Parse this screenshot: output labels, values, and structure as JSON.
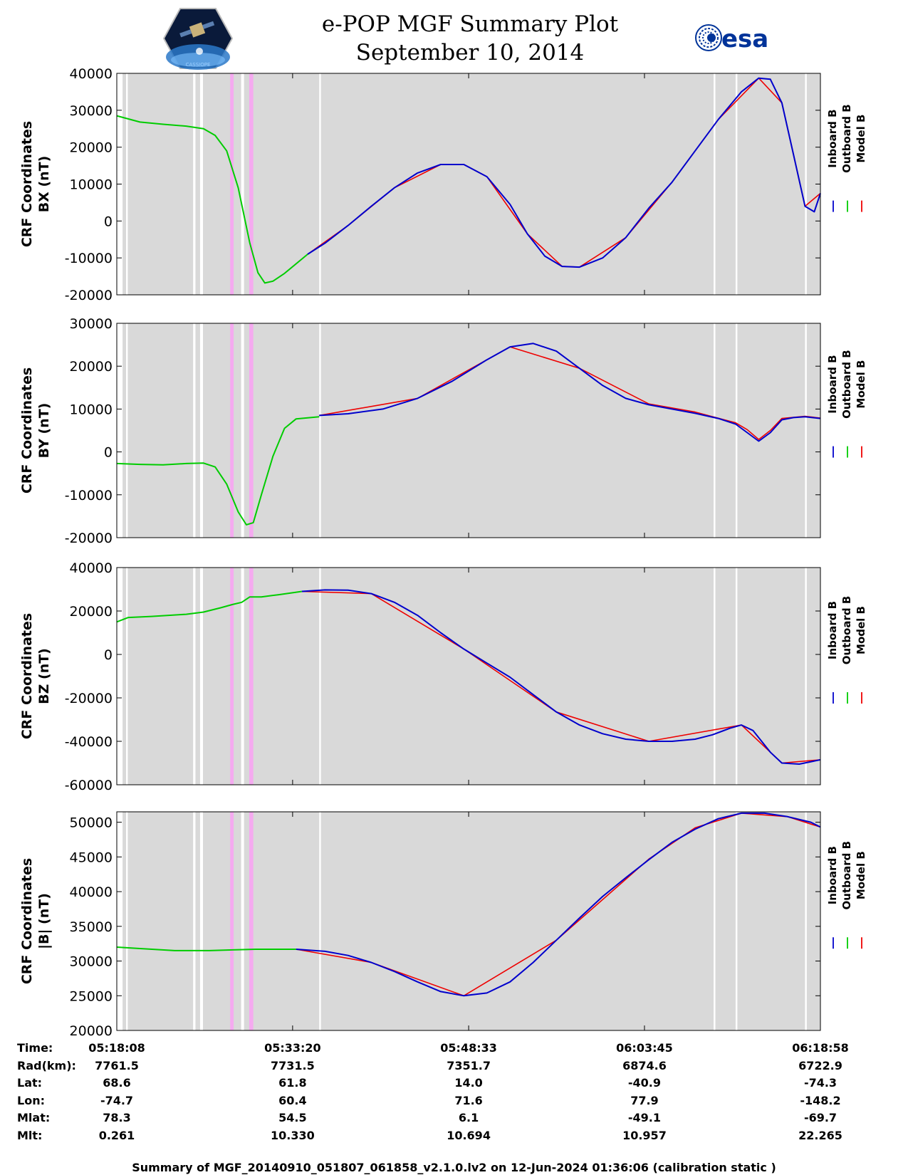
{
  "header": {
    "title_line1": "e-POP MGF Summary Plot",
    "title_line2": "September 10, 2014",
    "logo_right_text": "esa",
    "logo_left_caption": "CASSIOPE"
  },
  "colors": {
    "plot_bg": "#d9d9d9",
    "gap": "#ffffff",
    "pink_band": "#f5aaf0",
    "inboard": "#0000cc",
    "outboard": "#00cc00",
    "model": "#ee0000",
    "esa_blue": "#003399"
  },
  "legend": {
    "labels": [
      "Inboard B",
      "Outboard B",
      "Model B"
    ]
  },
  "time_axis": {
    "start_min": 0,
    "end_min": 60.83,
    "data_gaps_min": [
      [
        0.0,
        0.5
      ],
      [
        0.8,
        0.95
      ],
      [
        6.6,
        6.8
      ],
      [
        7.2,
        7.45
      ],
      [
        10.75,
        11.0
      ],
      [
        17.5,
        17.65
      ],
      [
        51.6,
        51.75
      ],
      [
        53.5,
        53.65
      ],
      [
        59.5,
        59.65
      ]
    ],
    "pink_bands_min": [
      [
        9.8,
        10.1
      ],
      [
        11.45,
        11.8
      ]
    ],
    "ticks_min": [
      0,
      15.2,
      30.42,
      45.62,
      60.83
    ]
  },
  "chart_data": [
    {
      "type": "line",
      "ylabel": "CRF Coordinates",
      "ylabel_sub": "BX (nT)",
      "ylim": [
        -20000,
        40000
      ],
      "yticks": [
        40000,
        30000,
        20000,
        10000,
        0,
        -10000,
        -20000
      ],
      "ytick_labels": [
        "40000",
        "30000",
        "20000",
        "10000",
        "0",
        "-10000",
        "-20000"
      ],
      "series": [
        {
          "name": "Outboard B",
          "x": [
            0,
            2,
            4,
            6,
            7.5,
            8.5,
            9.5,
            10.5,
            11.5,
            12.2,
            12.8,
            13.5,
            14.5,
            16.5
          ],
          "y": [
            28500,
            26800,
            26200,
            25700,
            25000,
            23200,
            19000,
            9000,
            -6000,
            -14000,
            -16800,
            -16300,
            -14200,
            -9000
          ]
        },
        {
          "name": "Inboard B",
          "x": [
            16.5,
            18,
            20,
            22,
            24,
            26,
            28,
            30,
            32,
            34,
            35.5,
            37,
            38.5,
            40,
            42,
            44,
            46,
            48,
            50,
            52,
            54,
            55.5,
            56.5,
            57.5,
            58.5,
            59.5,
            60.3,
            60.83
          ],
          "y": [
            -9000,
            -6000,
            -1200,
            4000,
            9000,
            13000,
            15300,
            15300,
            12000,
            4500,
            -3500,
            -9500,
            -12300,
            -12500,
            -10000,
            -4500,
            3500,
            10500,
            19000,
            27500,
            35000,
            38700,
            38400,
            32000,
            18000,
            4000,
            2500,
            7500
          ]
        },
        {
          "name": "Model B",
          "x": [
            16.5,
            20,
            24,
            28,
            30,
            32,
            35.5,
            38.5,
            40,
            44,
            48,
            52,
            55.5,
            57.5,
            59.5,
            60.83
          ],
          "y": [
            -9000,
            -1200,
            9000,
            15300,
            15300,
            12000,
            -3500,
            -12300,
            -12500,
            -4500,
            10500,
            27500,
            38700,
            32000,
            4000,
            7500
          ]
        }
      ]
    },
    {
      "type": "line",
      "ylabel": "CRF Coordinates",
      "ylabel_sub": "BY (nT)",
      "ylim": [
        -20000,
        30000
      ],
      "yticks": [
        30000,
        20000,
        10000,
        0,
        -10000,
        -20000
      ],
      "ytick_labels": [
        "30000",
        "20000",
        "10000",
        "0",
        "-10000",
        "-20000"
      ],
      "series": [
        {
          "name": "Outboard B",
          "x": [
            0,
            2,
            4,
            6,
            7.5,
            8.5,
            9.5,
            10.5,
            11.2,
            11.8,
            12.5,
            13.5,
            14.5,
            15.5,
            17.5
          ],
          "y": [
            -2700,
            -2900,
            -3000,
            -2700,
            -2600,
            -3500,
            -7500,
            -14000,
            -17000,
            -16500,
            -10000,
            -1000,
            5500,
            7700,
            8200
          ]
        },
        {
          "name": "Inboard B",
          "x": [
            17.5,
            20,
            23,
            26,
            29,
            32,
            34,
            36,
            38,
            40,
            42,
            44,
            46,
            48,
            50,
            52,
            53.5,
            54.5,
            55.5,
            56.5,
            57.5,
            58.5,
            59.5,
            60.83
          ],
          "y": [
            8500,
            8900,
            10000,
            12500,
            16500,
            21500,
            24500,
            25300,
            23500,
            19500,
            15500,
            12500,
            11000,
            10000,
            9000,
            7800,
            6500,
            4500,
            2500,
            4500,
            7500,
            8000,
            8200,
            7800
          ]
        },
        {
          "name": "Model B",
          "x": [
            17.5,
            26,
            34,
            40,
            46,
            50,
            53.5,
            54.5,
            55.5,
            56.5,
            57.5,
            59.5,
            60.83
          ],
          "y": [
            8500,
            12500,
            24500,
            19500,
            11200,
            9300,
            6800,
            5200,
            2900,
            5000,
            7800,
            8300,
            7900
          ]
        }
      ]
    },
    {
      "type": "line",
      "ylabel": "CRF Coordinates",
      "ylabel_sub": "BZ (nT)",
      "ylim": [
        -60000,
        40000
      ],
      "yticks": [
        40000,
        20000,
        0,
        -20000,
        -40000,
        -60000
      ],
      "ytick_labels": [
        "40000",
        "20000",
        "0",
        "-20000",
        "-40000",
        "-60000"
      ],
      "series": [
        {
          "name": "Outboard B",
          "x": [
            0,
            1,
            3,
            6,
            7.5,
            9,
            10,
            10.8,
            11.5,
            12.5,
            14,
            16
          ],
          "y": [
            15000,
            17000,
            17500,
            18500,
            19500,
            21500,
            23000,
            24000,
            26500,
            26500,
            27500,
            29000
          ]
        },
        {
          "name": "Inboard B",
          "x": [
            16,
            18,
            20,
            22,
            24,
            26,
            28,
            30,
            32,
            34,
            36,
            38,
            40,
            42,
            44,
            46,
            48,
            50,
            51.5,
            53,
            54,
            55,
            56.5,
            57.5,
            59,
            60.83
          ],
          "y": [
            29000,
            29700,
            29600,
            28000,
            24000,
            18000,
            10000,
            2500,
            -4000,
            -10500,
            -18500,
            -26500,
            -32500,
            -36500,
            -39000,
            -40000,
            -40000,
            -39000,
            -37000,
            -34000,
            -32500,
            -35000,
            -45000,
            -50000,
            -50500,
            -48500
          ]
        },
        {
          "name": "Model B",
          "x": [
            16,
            22,
            30,
            38,
            46,
            54,
            57.5,
            60.83
          ],
          "y": [
            29000,
            28000,
            2500,
            -26500,
            -40000,
            -32500,
            -50000,
            -48500
          ]
        }
      ]
    },
    {
      "type": "line",
      "ylabel": "CRF Coordinates",
      "ylabel_sub": "|B| (nT)",
      "ylim": [
        20000,
        51500
      ],
      "yticks": [
        50000,
        45000,
        40000,
        35000,
        30000,
        25000,
        20000
      ],
      "ytick_labels": [
        "50000",
        "45000",
        "40000",
        "35000",
        "30000",
        "25000",
        "20000"
      ],
      "series": [
        {
          "name": "Outboard B",
          "x": [
            0,
            2,
            5,
            8,
            10,
            12,
            14,
            15.5
          ],
          "y": [
            32000,
            31800,
            31500,
            31500,
            31600,
            31700,
            31700,
            31700
          ]
        },
        {
          "name": "Inboard B",
          "x": [
            15.5,
            18,
            20,
            22,
            24,
            26,
            28,
            30,
            32,
            34,
            36,
            38,
            40,
            42,
            44,
            46,
            48,
            50,
            52,
            54,
            56,
            58,
            60,
            60.83
          ],
          "y": [
            31700,
            31400,
            30800,
            29800,
            28500,
            27000,
            25600,
            25000,
            25400,
            27000,
            29800,
            33000,
            36200,
            39300,
            42000,
            44600,
            47100,
            49000,
            50500,
            51300,
            51300,
            50800,
            50000,
            49300
          ]
        },
        {
          "name": "Model B",
          "x": [
            15.5,
            22,
            30,
            38,
            46,
            50,
            54,
            58,
            60.83
          ],
          "y": [
            31700,
            29800,
            25000,
            33000,
            44700,
            49200,
            51300,
            50800,
            49300
          ]
        }
      ]
    }
  ],
  "info_table": {
    "labels": [
      "Time:",
      "Rad(km):",
      "Lat:",
      "Lon:",
      "Mlat:",
      "Mlt:"
    ],
    "columns": [
      [
        "05:18:08",
        "7761.5",
        "68.6",
        "-74.7",
        "78.3",
        "0.261"
      ],
      [
        "05:33:20",
        "7731.5",
        "61.8",
        "60.4",
        "54.5",
        "10.330"
      ],
      [
        "05:48:33",
        "7351.7",
        "14.0",
        "71.6",
        "6.1",
        "10.694"
      ],
      [
        "06:03:45",
        "6874.6",
        "-40.9",
        "77.9",
        "-49.1",
        "10.957"
      ],
      [
        "06:18:58",
        "6722.9",
        "-74.3",
        "-148.2",
        "-69.7",
        "22.265"
      ]
    ]
  },
  "footer": "Summary of MGF_20140910_051807_061858_v2.1.0.lv2 on 12-Jun-2024 01:36:06 (calibration static )"
}
